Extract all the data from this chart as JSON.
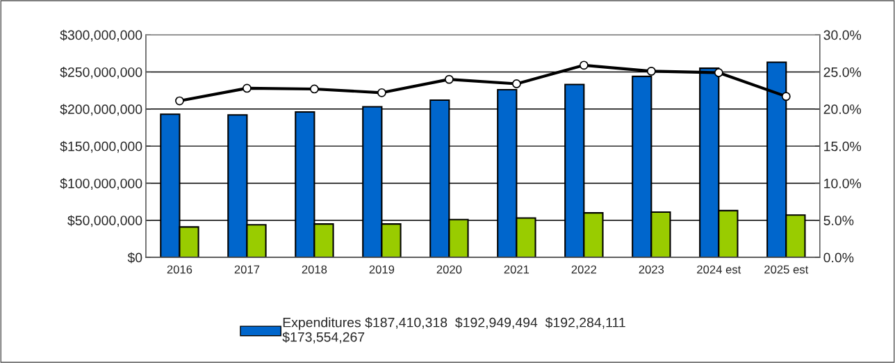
{
  "chart_data": {
    "type": "bar",
    "categories": [
      "2016",
      "2017",
      "2018",
      "2019",
      "2020",
      "2021",
      "2022",
      "2023",
      "2024 est",
      "2025 est"
    ],
    "series": [
      {
        "name": "Expenditures $187,410,318  $192,949,494  $192,284,111  $173,554,267",
        "color": "#0066cc",
        "values": [
          193000000,
          192000000,
          196000000,
          203000000,
          212000000,
          226000000,
          233000000,
          244000000,
          255000000,
          263000000
        ]
      },
      {
        "color": "#99cc00",
        "values": [
          41000000,
          44000000,
          45000000,
          45000000,
          51000000,
          53000000,
          60000000,
          61000000,
          63000000,
          57000000
        ]
      },
      {
        "type": "line",
        "axis": "y2",
        "color": "#000000",
        "marker": "circle",
        "values": [
          21.1,
          22.8,
          22.7,
          22.2,
          24.0,
          23.4,
          25.9,
          25.1,
          24.9,
          21.7
        ]
      }
    ],
    "ylim": [
      0,
      300000000
    ],
    "yticks": [
      {
        "value": 0,
        "label": "$0"
      },
      {
        "value": 50000000,
        "label": "$50,000,000"
      },
      {
        "value": 100000000,
        "label": "$100,000,000"
      },
      {
        "value": 150000000,
        "label": "$150,000,000"
      },
      {
        "value": 200000000,
        "label": "$200,000,000"
      },
      {
        "value": 250000000,
        "label": "$250,000,000"
      },
      {
        "value": 300000000,
        "label": "$300,000,000"
      }
    ],
    "y2lim": [
      0,
      30
    ],
    "y2ticks": [
      {
        "value": 0,
        "label": "0.0%"
      },
      {
        "value": 5,
        "label": "5.0%"
      },
      {
        "value": 10,
        "label": "10.0%"
      },
      {
        "value": 15,
        "label": "15.0%"
      },
      {
        "value": 20,
        "label": "20.0%"
      },
      {
        "value": 25,
        "label": "25.0%"
      },
      {
        "value": 30,
        "label": "30.0%"
      }
    ],
    "grid": "y",
    "legend": "bottom"
  }
}
